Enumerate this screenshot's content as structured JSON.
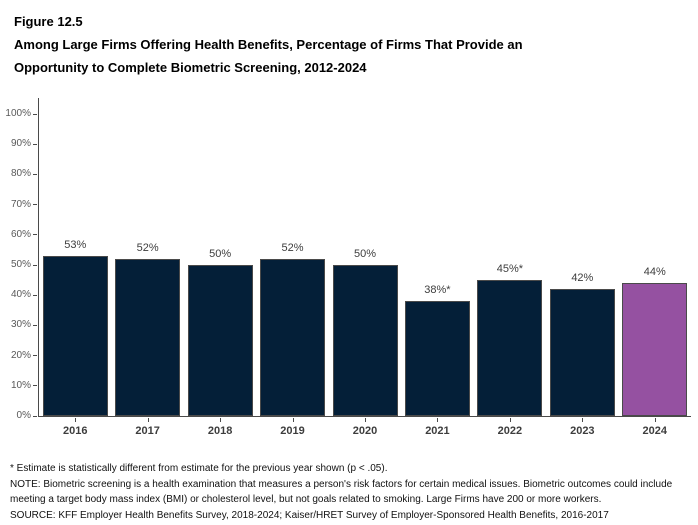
{
  "figure": {
    "number": "Figure 12.5",
    "title_lines": [
      "Among Large Firms Offering Health Benefits, Percentage of Firms That Provide an",
      "Opportunity to Complete Biometric Screening, 2012-2024"
    ]
  },
  "chart_data": {
    "type": "bar",
    "title": "Among Large Firms Offering Health Benefits, Percentage of Firms That Provide an Opportunity to Complete Biometric Screening, 2012-2024",
    "categories": [
      "2016",
      "2017",
      "2018",
      "2019",
      "2020",
      "2021",
      "2022",
      "2023",
      "2024"
    ],
    "values": [
      53,
      52,
      50,
      52,
      50,
      38,
      45,
      42,
      44
    ],
    "bar_labels": [
      "53%",
      "52%",
      "50%",
      "52%",
      "50%",
      "38%*",
      "45%*",
      "42%",
      "44%"
    ],
    "xlabel": "",
    "ylabel": "",
    "ylim": [
      0,
      100
    ],
    "ytick_step": 10,
    "ytick_labels": [
      "0%",
      "10%",
      "20%",
      "30%",
      "40%",
      "50%",
      "60%",
      "70%",
      "80%",
      "90%",
      "100%"
    ],
    "grid": false,
    "legend": "none",
    "colors": {
      "bar_default": "#041f38",
      "bar_highlight": "#9551a1",
      "bar_outline": "#4a4a4a",
      "axis": "#4a4a4a",
      "tick_label": "#595959",
      "value_label": "#3d3d3d"
    },
    "highlight_category": "2024"
  },
  "footnotes": {
    "asterisk": "* Estimate is statistically different from estimate for the previous year shown (p < .05).",
    "note": "NOTE: Biometric screening is a health examination that measures a person's risk factors for certain medical issues. Biometric outcomes could include meeting a target body mass index (BMI) or cholesterol level, but not goals related to smoking. Large Firms have 200 or more workers.",
    "source": "SOURCE: KFF Employer Health Benefits Survey, 2018-2024; Kaiser/HRET Survey of Employer-Sponsored Health Benefits, 2016-2017"
  }
}
